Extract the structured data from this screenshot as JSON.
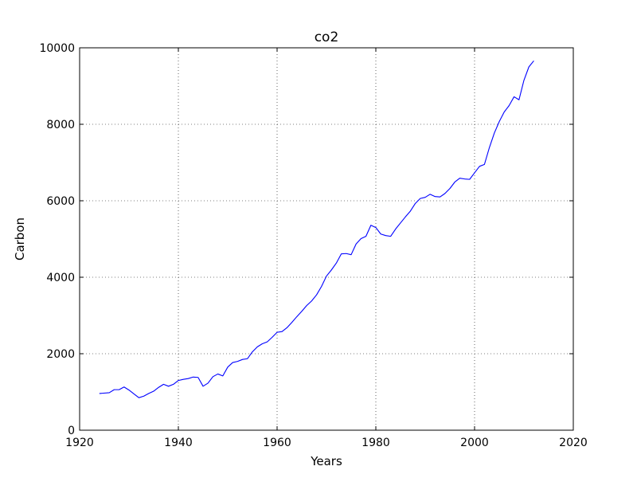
{
  "chart_data": {
    "type": "line",
    "title": "co2",
    "xlabel": "Years",
    "ylabel": "Carbon",
    "xlim": [
      1920,
      2020
    ],
    "ylim": [
      0,
      10000
    ],
    "xticks": [
      1920,
      1940,
      1960,
      1980,
      2000,
      2020
    ],
    "yticks": [
      0,
      2000,
      4000,
      6000,
      8000,
      10000
    ],
    "grid": true,
    "series": [
      {
        "color": "#0000ff",
        "x": [
          1924,
          1926,
          1927,
          1928,
          1929,
          1930,
          1931,
          1932,
          1933,
          1934,
          1935,
          1936,
          1937,
          1938,
          1939,
          1940,
          1941,
          1942,
          1943,
          1944,
          1945,
          1946,
          1947,
          1948,
          1949,
          1950,
          1951,
          1952,
          1953,
          1954,
          1955,
          1956,
          1957,
          1958,
          1959,
          1960,
          1961,
          1962,
          1963,
          1964,
          1965,
          1966,
          1967,
          1968,
          1969,
          1970,
          1971,
          1972,
          1973,
          1974,
          1975,
          1976,
          1977,
          1978,
          1979,
          1980,
          1981,
          1982,
          1983,
          1984,
          1985,
          1986,
          1987,
          1988,
          1989,
          1990,
          1991,
          1992,
          1993,
          1994,
          1995,
          1996,
          1997,
          1998,
          1999,
          2000,
          2001,
          2002,
          2003,
          2004,
          2005,
          2006,
          2007,
          2008,
          2009,
          2010,
          2011,
          2012
        ],
        "y": [
          960,
          980,
          1060,
          1060,
          1130,
          1050,
          950,
          850,
          890,
          960,
          1020,
          1120,
          1200,
          1150,
          1200,
          1300,
          1330,
          1350,
          1390,
          1380,
          1150,
          1230,
          1400,
          1470,
          1420,
          1650,
          1770,
          1800,
          1850,
          1870,
          2050,
          2180,
          2260,
          2310,
          2430,
          2560,
          2580,
          2680,
          2820,
          2970,
          3110,
          3260,
          3380,
          3540,
          3760,
          4030,
          4190,
          4370,
          4610,
          4620,
          4590,
          4870,
          5010,
          5070,
          5360,
          5300,
          5130,
          5090,
          5070,
          5260,
          5420,
          5580,
          5730,
          5930,
          6060,
          6090,
          6170,
          6110,
          6100,
          6190,
          6320,
          6490,
          6590,
          6570,
          6560,
          6730,
          6900,
          6950,
          7390,
          7770,
          8070,
          8320,
          8490,
          8720,
          8640,
          9150,
          9500,
          9660
        ]
      }
    ]
  }
}
